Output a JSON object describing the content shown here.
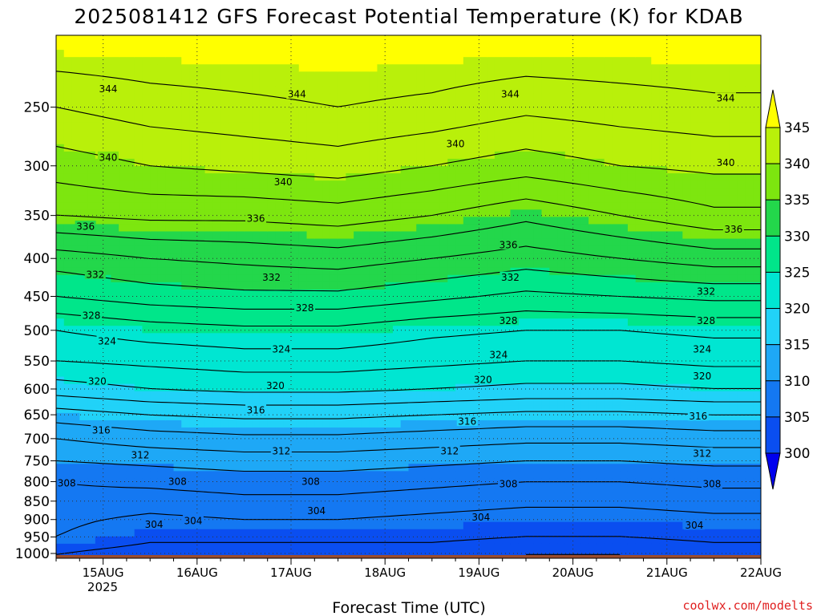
{
  "chart_data": {
    "type": "heatmap",
    "title": "2025081412 GFS Forecast Potential Temperature (K) for KDAB",
    "xlabel": "Forecast Time (UTC)",
    "ylabel": "",
    "x_ticks": [
      "15AUG",
      "16AUG",
      "17AUG",
      "18AUG",
      "19AUG",
      "20AUG",
      "21AUG",
      "22AUG"
    ],
    "x_year": "2025",
    "x_range": [
      "2025-08-14T12:00Z",
      "2025-08-22T00:00Z"
    ],
    "y_ticks": [
      250,
      300,
      350,
      400,
      450,
      500,
      550,
      600,
      650,
      700,
      750,
      800,
      850,
      900,
      950,
      1000
    ],
    "y_axis_scale": "log (pressure, hPa), inverted",
    "y_range": [
      1015,
      200
    ],
    "colorbar": {
      "levels": [
        300,
        305,
        310,
        315,
        320,
        325,
        330,
        335,
        340,
        345
      ],
      "colors": [
        "#0000ee",
        "#0a4ef0",
        "#1478f2",
        "#1ea8f6",
        "#21d2f8",
        "#00e6d2",
        "#00e68a",
        "#23d74b",
        "#7de60f",
        "#b9f00a",
        "#ffff00"
      ]
    },
    "grid": true,
    "series": [
      {
        "values": [
          [
            1000,
            304
          ],
          [
            950,
            306
          ],
          [
            900,
            306.5
          ],
          [
            850,
            307.5
          ],
          [
            800,
            308
          ],
          [
            750,
            310
          ],
          [
            700,
            312
          ],
          [
            650,
            315
          ],
          [
            600,
            319
          ],
          [
            550,
            322
          ],
          [
            500,
            324
          ],
          [
            450,
            328
          ],
          [
            400,
            331
          ],
          [
            350,
            336
          ],
          [
            300,
            339
          ],
          [
            250,
            342
          ],
          [
            200,
            346
          ]
        ]
      },
      {
        "values": [
          [
            1000,
            303
          ],
          [
            950,
            304.5
          ],
          [
            900,
            305.5
          ],
          [
            850,
            307
          ],
          [
            800,
            308.5
          ],
          [
            750,
            310.5
          ],
          [
            700,
            313
          ],
          [
            650,
            316
          ],
          [
            600,
            320
          ],
          [
            550,
            322.5
          ],
          [
            500,
            325
          ],
          [
            450,
            329
          ],
          [
            400,
            332
          ],
          [
            350,
            336.5
          ],
          [
            300,
            340
          ],
          [
            250,
            343
          ],
          [
            200,
            346
          ]
        ]
      },
      {
        "values": [
          [
            1000,
            303
          ],
          [
            950,
            304.5
          ],
          [
            900,
            306
          ],
          [
            850,
            307.5
          ],
          [
            800,
            309
          ],
          [
            750,
            311
          ],
          [
            700,
            313.5
          ],
          [
            650,
            316.5
          ],
          [
            600,
            320.5
          ],
          [
            550,
            323
          ],
          [
            500,
            325.5
          ],
          [
            450,
            329.5
          ],
          [
            400,
            332.5
          ],
          [
            350,
            336.5
          ],
          [
            300,
            340.5
          ],
          [
            250,
            343.5
          ],
          [
            200,
            346
          ]
        ]
      },
      {
        "values": [
          [
            1000,
            303
          ],
          [
            950,
            304.5
          ],
          [
            900,
            306
          ],
          [
            850,
            307.5
          ],
          [
            800,
            309
          ],
          [
            750,
            311
          ],
          [
            700,
            313.5
          ],
          [
            650,
            316.5
          ],
          [
            600,
            320.5
          ],
          [
            550,
            323
          ],
          [
            500,
            325.5
          ],
          [
            450,
            329.5
          ],
          [
            400,
            333
          ],
          [
            350,
            337
          ],
          [
            300,
            341
          ],
          [
            250,
            344
          ],
          [
            200,
            346
          ]
        ]
      },
      {
        "values": [
          [
            1000,
            303
          ],
          [
            950,
            304.5
          ],
          [
            900,
            305.5
          ],
          [
            850,
            307
          ],
          [
            800,
            308.5
          ],
          [
            750,
            310.5
          ],
          [
            700,
            313
          ],
          [
            650,
            316
          ],
          [
            600,
            320
          ],
          [
            550,
            322.5
          ],
          [
            500,
            324.5
          ],
          [
            450,
            328.5
          ],
          [
            400,
            332
          ],
          [
            350,
            336
          ],
          [
            300,
            340
          ],
          [
            250,
            343.5
          ],
          [
            200,
            346
          ]
        ]
      },
      {
        "values": [
          [
            1000,
            302
          ],
          [
            950,
            304
          ],
          [
            900,
            305
          ],
          [
            850,
            306.5
          ],
          [
            800,
            308
          ],
          [
            750,
            310
          ],
          [
            700,
            312.5
          ],
          [
            650,
            315.5
          ],
          [
            600,
            319.5
          ],
          [
            550,
            322
          ],
          [
            500,
            324
          ],
          [
            450,
            327.5
          ],
          [
            400,
            331
          ],
          [
            350,
            334.5
          ],
          [
            300,
            339
          ],
          [
            250,
            342.5
          ],
          [
            200,
            346
          ]
        ]
      },
      {
        "values": [
          [
            1000,
            302
          ],
          [
            950,
            304
          ],
          [
            900,
            305
          ],
          [
            850,
            306.5
          ],
          [
            800,
            308
          ],
          [
            750,
            310
          ],
          [
            700,
            312.5
          ],
          [
            650,
            315.5
          ],
          [
            600,
            319.5
          ],
          [
            550,
            322
          ],
          [
            500,
            324
          ],
          [
            450,
            328
          ],
          [
            400,
            332
          ],
          [
            350,
            336
          ],
          [
            300,
            340
          ],
          [
            250,
            343
          ],
          [
            200,
            346
          ]
        ]
      },
      {
        "values": [
          [
            1000,
            303
          ],
          [
            950,
            304.5
          ],
          [
            900,
            305.5
          ],
          [
            850,
            307
          ],
          [
            800,
            308.5
          ],
          [
            750,
            310.5
          ],
          [
            700,
            313
          ],
          [
            650,
            316
          ],
          [
            600,
            320
          ],
          [
            550,
            322.5
          ],
          [
            500,
            324.5
          ],
          [
            450,
            328.5
          ],
          [
            400,
            333
          ],
          [
            350,
            337.5
          ],
          [
            300,
            340.5
          ],
          [
            250,
            343.5
          ],
          [
            200,
            346
          ]
        ]
      }
    ],
    "contour_labels": [
      {
        "text": "344",
        "t": 13.3,
        "p": 236
      },
      {
        "text": "344",
        "t": 61.5,
        "p": 240
      },
      {
        "text": "344",
        "t": 116,
        "p": 240
      },
      {
        "text": "344",
        "t": 171,
        "p": 243
      },
      {
        "text": "340",
        "t": 13.3,
        "p": 292
      },
      {
        "text": "340",
        "t": 58,
        "p": 315
      },
      {
        "text": "340",
        "t": 102,
        "p": 280
      },
      {
        "text": "340",
        "t": 171,
        "p": 297
      },
      {
        "text": "336",
        "t": 7.5,
        "p": 362
      },
      {
        "text": "336",
        "t": 51,
        "p": 353
      },
      {
        "text": "336",
        "t": 115.5,
        "p": 383
      },
      {
        "text": "336",
        "t": 173,
        "p": 365
      },
      {
        "text": "332",
        "t": 10,
        "p": 420
      },
      {
        "text": "332",
        "t": 55,
        "p": 424
      },
      {
        "text": "332",
        "t": 116,
        "p": 424
      },
      {
        "text": "332",
        "t": 166,
        "p": 443
      },
      {
        "text": "328",
        "t": 9,
        "p": 477
      },
      {
        "text": "328",
        "t": 63.5,
        "p": 466
      },
      {
        "text": "328",
        "t": 115.5,
        "p": 485
      },
      {
        "text": "328",
        "t": 166,
        "p": 485
      },
      {
        "text": "324",
        "t": 13,
        "p": 517
      },
      {
        "text": "324",
        "t": 57.5,
        "p": 530
      },
      {
        "text": "324",
        "t": 113,
        "p": 539
      },
      {
        "text": "324",
        "t": 165,
        "p": 530
      },
      {
        "text": "320",
        "t": 10.5,
        "p": 585
      },
      {
        "text": "320",
        "t": 56,
        "p": 593
      },
      {
        "text": "320",
        "t": 109,
        "p": 582
      },
      {
        "text": "320",
        "t": 165,
        "p": 576
      },
      {
        "text": "316",
        "t": 11.5,
        "p": 681
      },
      {
        "text": "316",
        "t": 51,
        "p": 640
      },
      {
        "text": "316",
        "t": 105,
        "p": 663
      },
      {
        "text": "316",
        "t": 164,
        "p": 652
      },
      {
        "text": "312",
        "t": 21.5,
        "p": 736
      },
      {
        "text": "312",
        "t": 57.5,
        "p": 727
      },
      {
        "text": "312",
        "t": 100.5,
        "p": 727
      },
      {
        "text": "312",
        "t": 165,
        "p": 732
      },
      {
        "text": "308",
        "t": 2.7,
        "p": 803
      },
      {
        "text": "308",
        "t": 31,
        "p": 799
      },
      {
        "text": "308",
        "t": 65,
        "p": 799
      },
      {
        "text": "308",
        "t": 115.5,
        "p": 805
      },
      {
        "text": "308",
        "t": 167.5,
        "p": 805
      },
      {
        "text": "304",
        "t": 25,
        "p": 913
      },
      {
        "text": "304",
        "t": 35,
        "p": 903
      },
      {
        "text": "304",
        "t": 66.5,
        "p": 875
      },
      {
        "text": "304",
        "t": 108.5,
        "p": 893
      },
      {
        "text": "304",
        "t": 163,
        "p": 915
      }
    ]
  },
  "credit": "coolwx.com/modelts",
  "colors": {
    "ground": "#9a4d2e",
    "axis": "#000000",
    "credit": "#e02020"
  }
}
